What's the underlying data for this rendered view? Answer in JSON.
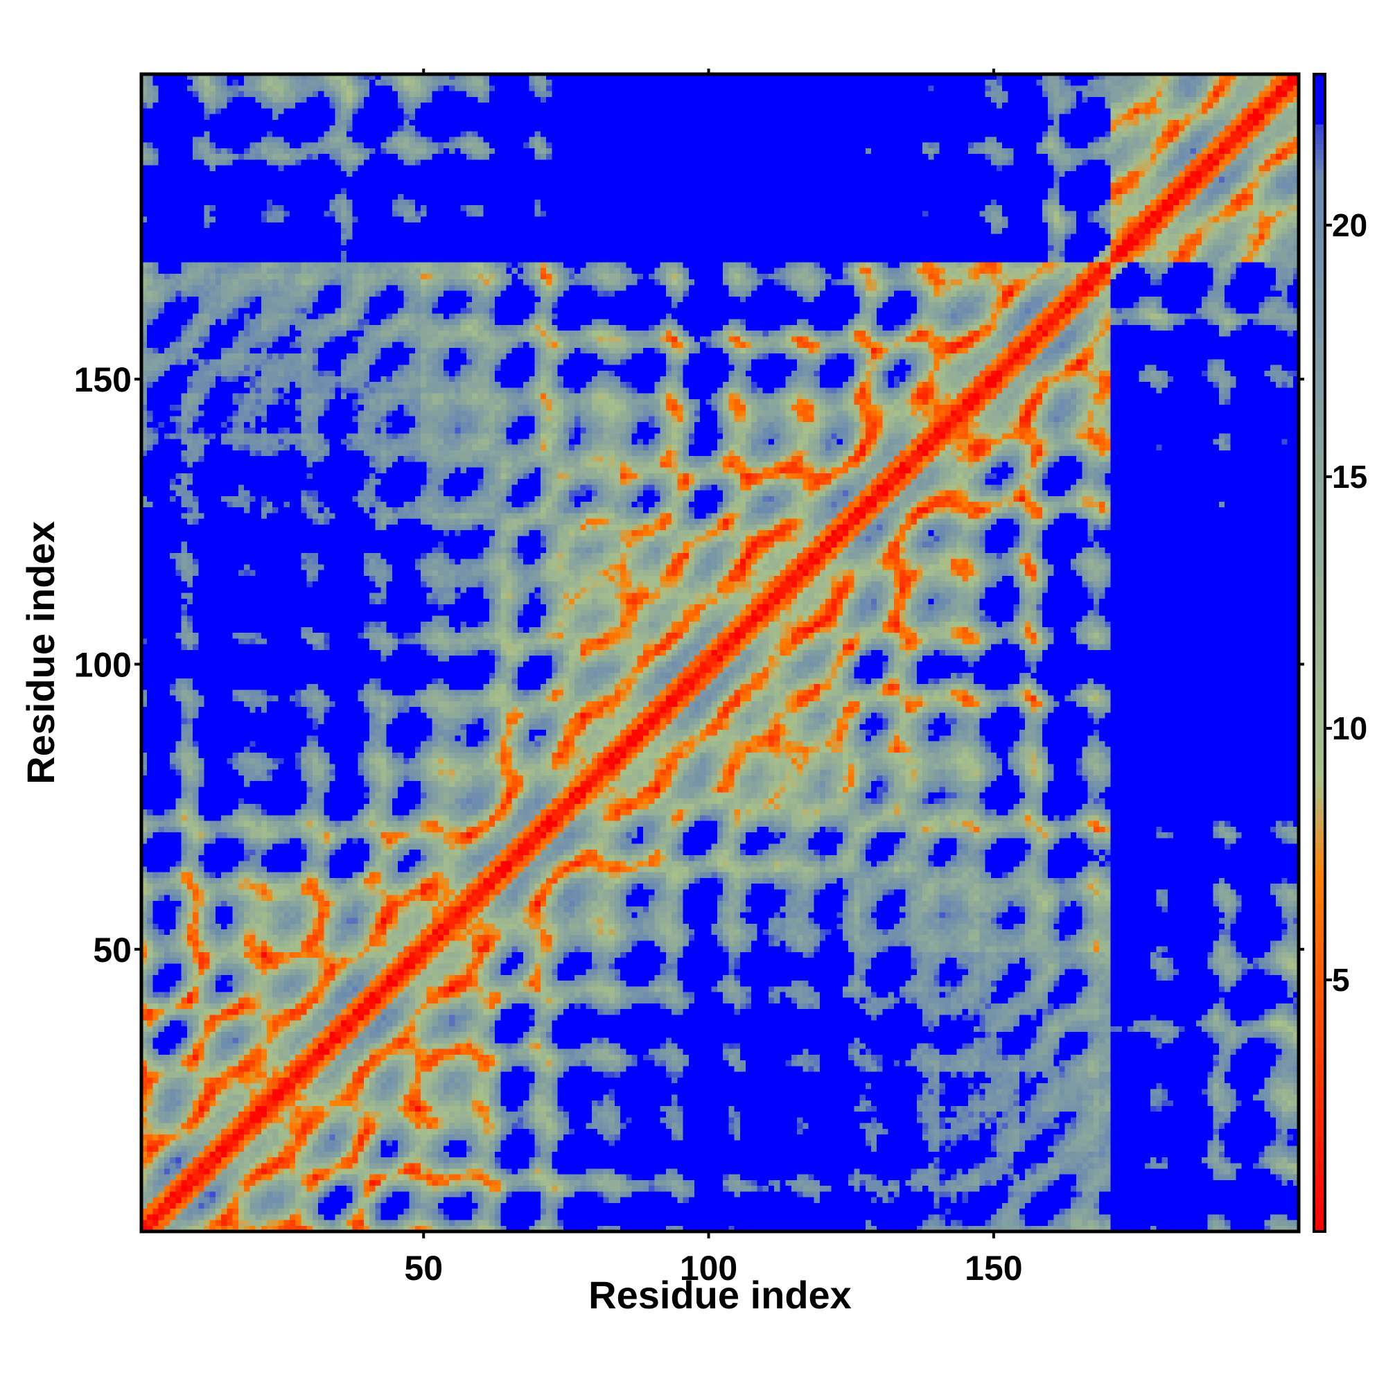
{
  "chart_data": {
    "type": "heatmap",
    "title": "",
    "xlabel": "Residue index",
    "ylabel": "Residue index",
    "n_residues": 203,
    "xlim": [
      1,
      203
    ],
    "ylim": [
      1,
      203
    ],
    "xticks": [
      50,
      100,
      150
    ],
    "yticks": [
      50,
      100,
      150
    ],
    "colorbar": {
      "range": [
        0,
        23
      ],
      "ticks": [
        5,
        10,
        15,
        20
      ],
      "colors": [
        "#ff0000",
        "#ff7f00",
        "#a8c08a",
        "#6b8ab0",
        "#0000ff"
      ],
      "stops": [
        0,
        7,
        9,
        21,
        23
      ]
    },
    "domain_boundary": 170,
    "cutoff": 22,
    "contact_features": [
      {
        "kind": "diagonal",
        "range": [
          1,
          203
        ]
      },
      {
        "kind": "antiparallel",
        "center": [
          66,
          66
        ],
        "extent": 12
      },
      {
        "kind": "antiparallel",
        "center": [
          93,
          93
        ],
        "extent": 10
      },
      {
        "kind": "antiparallel",
        "center": [
          125,
          125
        ],
        "extent": 12
      },
      {
        "kind": "antiparallel",
        "center": [
          141,
          141
        ],
        "extent": 8
      },
      {
        "kind": "parallel",
        "from": [
          38,
          18
        ],
        "to": [
          45,
          10
        ]
      },
      {
        "kind": "parallel",
        "from": [
          55,
          40
        ],
        "to": [
          60,
          55
        ]
      },
      {
        "kind": "parallel",
        "from": [
          70,
          85
        ],
        "to": [
          78,
          92
        ]
      },
      {
        "kind": "parallel",
        "from": [
          100,
          80
        ],
        "to": [
          105,
          90
        ]
      },
      {
        "kind": "parallel",
        "from": [
          140,
          163
        ],
        "to": [
          150,
          168
        ]
      },
      {
        "kind": "parallel",
        "from": [
          180,
          180
        ],
        "to": [
          195,
          195
        ]
      }
    ]
  }
}
